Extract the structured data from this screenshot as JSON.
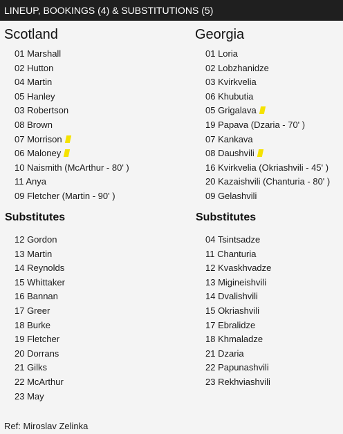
{
  "header": {
    "title": "LINEUP, BOOKINGS (4) & SUBSTITUTIONS (5)"
  },
  "home": {
    "team": "Scotland",
    "subs_heading": "Substitutes",
    "starters": [
      {
        "label": "01 Marshall",
        "booked": false
      },
      {
        "label": "02 Hutton",
        "booked": false
      },
      {
        "label": "04 Martin",
        "booked": false
      },
      {
        "label": "05 Hanley",
        "booked": false
      },
      {
        "label": "03 Robertson",
        "booked": false
      },
      {
        "label": "08 Brown",
        "booked": false
      },
      {
        "label": "07 Morrison",
        "booked": true
      },
      {
        "label": "06 Maloney",
        "booked": true
      },
      {
        "label": "10 Naismith (McArthur - 80' )",
        "booked": false
      },
      {
        "label": "11 Anya",
        "booked": false
      },
      {
        "label": "09 Fletcher (Martin - 90' )",
        "booked": false
      }
    ],
    "subs": [
      "12 Gordon",
      "13 Martin",
      "14 Reynolds",
      "15 Whittaker",
      "16 Bannan",
      "17 Greer",
      "18 Burke",
      "19 Fletcher",
      "20 Dorrans",
      "21 Gilks",
      "22 McArthur",
      "23 May"
    ]
  },
  "away": {
    "team": "Georgia",
    "subs_heading": "Substitutes",
    "starters": [
      {
        "label": "01 Loria",
        "booked": false
      },
      {
        "label": "02 Lobzhanidze",
        "booked": false
      },
      {
        "label": "03 Kvirkvelia",
        "booked": false
      },
      {
        "label": "06 Khubutia",
        "booked": false
      },
      {
        "label": "05 Grigalava",
        "booked": true
      },
      {
        "label": "19 Papava (Dzaria - 70' )",
        "booked": false
      },
      {
        "label": "07 Kankava",
        "booked": false
      },
      {
        "label": "08 Daushvili",
        "booked": true
      },
      {
        "label": "16 Kvirkvelia (Okriashvili - 45' )",
        "booked": false
      },
      {
        "label": "20 Kazaishvili (Chanturia - 80' )",
        "booked": false
      },
      {
        "label": "09 Gelashvili",
        "booked": false
      }
    ],
    "subs": [
      "04 Tsintsadze",
      "11 Chanturia",
      "12 Kvaskhvadze",
      "13 Migineishvili",
      "14 Dvalishvili",
      "15 Okriashvili",
      "17 Ebralidze",
      "18 Khmaladze",
      "21 Dzaria",
      "22 Papunashvili",
      "23 Rekhviashvili"
    ]
  },
  "referee": "Ref: Miroslav Zelinka",
  "colors": {
    "header_bg": "#1f1f1f",
    "yellow_card": "#f5e200",
    "background": "#f4f4f4"
  },
  "icons": {
    "booking": "yellow-card-icon"
  }
}
